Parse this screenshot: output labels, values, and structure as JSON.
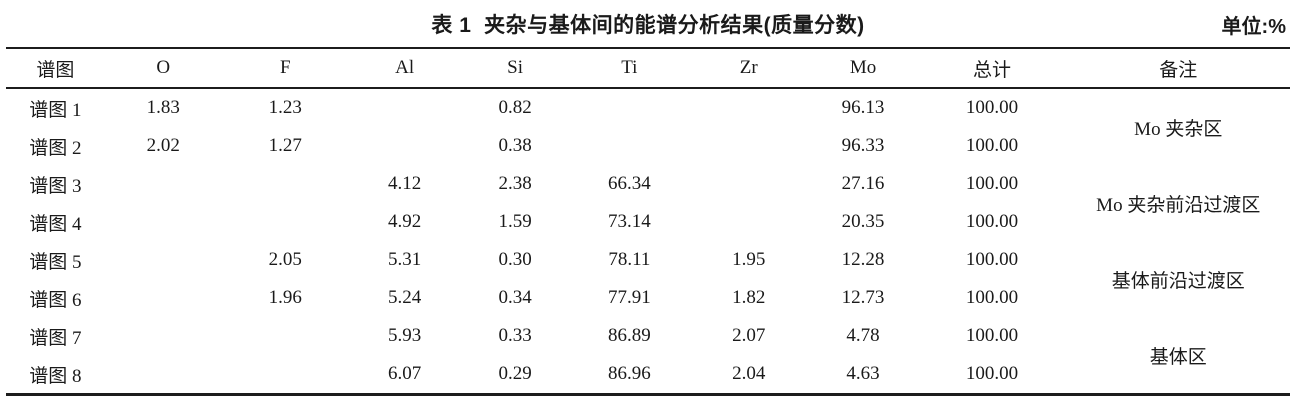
{
  "title": "表 1  夹杂与基体间的能谱分析结果(质量分数)",
  "unit_label": "单位:%",
  "table": {
    "columns": [
      "谱图",
      "O",
      "F",
      "Al",
      "Si",
      "Ti",
      "Zr",
      "Mo",
      "总计",
      "备注"
    ],
    "rows": [
      [
        "谱图 1",
        "1.83",
        "1.23",
        "",
        "0.82",
        "",
        "",
        "96.13",
        "100.00"
      ],
      [
        "谱图 2",
        "2.02",
        "1.27",
        "",
        "0.38",
        "",
        "",
        "96.33",
        "100.00"
      ],
      [
        "谱图 3",
        "",
        "",
        "4.12",
        "2.38",
        "66.34",
        "",
        "27.16",
        "100.00"
      ],
      [
        "谱图 4",
        "",
        "",
        "4.92",
        "1.59",
        "73.14",
        "",
        "20.35",
        "100.00"
      ],
      [
        "谱图 5",
        "",
        "2.05",
        "5.31",
        "0.30",
        "78.11",
        "1.95",
        "12.28",
        "100.00"
      ],
      [
        "谱图 6",
        "",
        "1.96",
        "5.24",
        "0.34",
        "77.91",
        "1.82",
        "12.73",
        "100.00"
      ],
      [
        "谱图 7",
        "",
        "",
        "5.93",
        "0.33",
        "86.89",
        "2.07",
        "4.78",
        "100.00"
      ],
      [
        "谱图 8",
        "",
        "",
        "6.07",
        "0.29",
        "86.96",
        "2.04",
        "4.63",
        "100.00"
      ]
    ],
    "remarks": [
      "Mo 夹杂区",
      "Mo 夹杂前沿过渡区",
      "基体前沿过渡区",
      "基体区"
    ]
  }
}
